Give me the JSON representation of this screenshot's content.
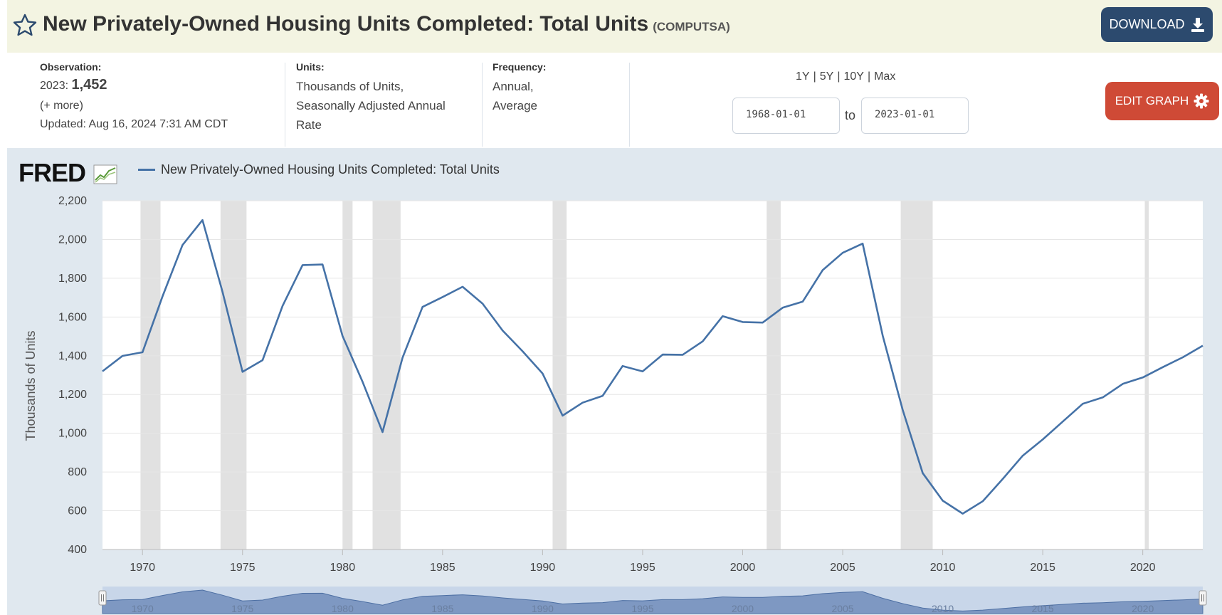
{
  "header": {
    "title": "New Privately-Owned Housing Units Completed: Total Units",
    "series_id": "(COMPUTSA)",
    "download_label": "DOWNLOAD"
  },
  "observation": {
    "label": "Observation:",
    "period": "2023:",
    "value": "1,452",
    "more": "(+ more)",
    "updated_label": "Updated:",
    "updated_value": "Aug 16, 2024 7:31 AM CDT"
  },
  "units": {
    "label": "Units:",
    "line1": "Thousands of Units,",
    "line2": "Seasonally Adjusted Annual",
    "line3": "Rate"
  },
  "frequency": {
    "label": "Frequency:",
    "line1": "Annual,",
    "line2": "Average"
  },
  "range_links": [
    "1Y",
    "5Y",
    "10Y",
    "Max"
  ],
  "range_separator": "|",
  "date_range": {
    "start": "1968-01-01",
    "to_label": "to",
    "end": "2023-01-01"
  },
  "edit_label": "EDIT GRAPH",
  "logo_text": "FRED",
  "colors": {
    "line": "#4572a7",
    "recession": "#e1e1e1",
    "header_bg": "#f3f4e2",
    "download_bg": "#2c4a6e",
    "edit_bg": "#cf4a36",
    "panel_bg": "#e0e8ef"
  },
  "chart_data": {
    "type": "line",
    "title": "",
    "legend": "New Privately-Owned Housing Units Completed: Total Units",
    "xlabel": "",
    "ylabel": "Thousands of Units",
    "xlim": [
      1968,
      2023
    ],
    "ylim": [
      400,
      2200
    ],
    "yticks": [
      400,
      600,
      800,
      1000,
      1200,
      1400,
      1600,
      1800,
      2000,
      2200
    ],
    "xticks": [
      1970,
      1975,
      1980,
      1985,
      1990,
      1995,
      2000,
      2005,
      2010,
      2015,
      2020
    ],
    "grid": true,
    "recessions": [
      [
        1969.9,
        1970.9
      ],
      [
        1973.9,
        1975.2
      ],
      [
        1980.0,
        1980.5
      ],
      [
        1981.5,
        1982.9
      ],
      [
        1990.5,
        1991.2
      ],
      [
        2001.2,
        2001.9
      ],
      [
        2007.9,
        2009.5
      ],
      [
        2020.1,
        2020.3
      ]
    ],
    "series": [
      {
        "name": "New Privately-Owned Housing Units Completed: Total Units",
        "x": [
          1968,
          1969,
          1970,
          1971,
          1972,
          1973,
          1974,
          1975,
          1976,
          1977,
          1978,
          1979,
          1980,
          1981,
          1982,
          1983,
          1984,
          1985,
          1986,
          1987,
          1988,
          1989,
          1990,
          1991,
          1992,
          1993,
          1994,
          1995,
          1996,
          1997,
          1998,
          1999,
          2000,
          2001,
          2002,
          2003,
          2004,
          2005,
          2006,
          2007,
          2008,
          2009,
          2010,
          2011,
          2012,
          2013,
          2014,
          2015,
          2016,
          2017,
          2018,
          2019,
          2020,
          2021,
          2022,
          2023
        ],
        "values": [
          1320,
          1399,
          1418,
          1706,
          1971,
          2100,
          1729,
          1317,
          1377,
          1657,
          1868,
          1871,
          1502,
          1266,
          1006,
          1390,
          1652,
          1703,
          1756,
          1669,
          1530,
          1423,
          1308,
          1091,
          1158,
          1193,
          1347,
          1319,
          1406,
          1405,
          1474,
          1604,
          1574,
          1571,
          1648,
          1679,
          1842,
          1931,
          1979,
          1503,
          1120,
          794,
          652,
          585,
          649,
          764,
          884,
          968,
          1060,
          1152,
          1185,
          1255,
          1288,
          1341,
          1392,
          1452
        ]
      }
    ]
  }
}
